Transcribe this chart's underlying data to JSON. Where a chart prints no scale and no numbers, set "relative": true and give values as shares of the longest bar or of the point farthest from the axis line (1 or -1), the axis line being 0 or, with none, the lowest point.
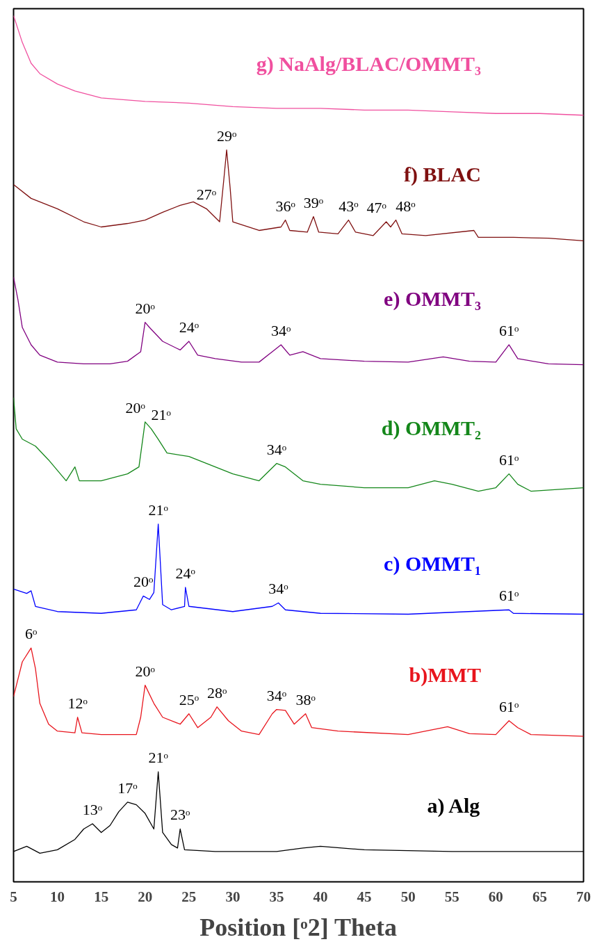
{
  "chart_data": {
    "type": "line",
    "relative": true,
    "xlabel": "Position [ᵒ2] Theta",
    "xlim": [
      5,
      70
    ],
    "xticks": [
      5,
      10,
      15,
      20,
      25,
      30,
      35,
      40,
      45,
      50,
      55,
      60,
      65,
      70
    ],
    "line_style": "solid",
    "series": [
      {
        "name": "g) NaAlg/BLAC/OMMT₃",
        "color": "#f0509f",
        "x": [
          5,
          6,
          7,
          8,
          10,
          12,
          15,
          20,
          25,
          30,
          35,
          40,
          45,
          50,
          55,
          60,
          65,
          70
        ],
        "values": [
          1.0,
          0.969,
          0.945,
          0.933,
          0.921,
          0.913,
          0.905,
          0.901,
          0.899,
          0.895,
          0.893,
          0.893,
          0.891,
          0.891,
          0.889,
          0.887,
          0.887,
          0.885
        ]
      },
      {
        "name": "f) BLAC",
        "color": "#7f1010",
        "x": [
          5,
          7,
          10,
          13,
          15,
          18,
          20,
          22,
          24,
          25.5,
          27,
          28.5,
          29,
          29.3,
          29.7,
          30,
          33,
          35.5,
          36,
          36.5,
          38.5,
          39.2,
          39.8,
          42,
          43.2,
          44,
          46,
          47.5,
          48,
          48.6,
          49.3,
          52,
          57.5,
          58,
          62,
          66,
          70
        ],
        "values": [
          0.805,
          0.789,
          0.777,
          0.762,
          0.756,
          0.76,
          0.764,
          0.773,
          0.781,
          0.785,
          0.777,
          0.762,
          0.813,
          0.845,
          0.801,
          0.762,
          0.752,
          0.756,
          0.764,
          0.752,
          0.75,
          0.768,
          0.75,
          0.748,
          0.764,
          0.75,
          0.746,
          0.762,
          0.756,
          0.764,
          0.748,
          0.746,
          0.752,
          0.744,
          0.744,
          0.743,
          0.74
        ]
      },
      {
        "name": "e) OMMT₃",
        "color": "#800080",
        "x": [
          5,
          5.5,
          6,
          7,
          8,
          10,
          13,
          16,
          18,
          19.5,
          20,
          20.5,
          22,
          24,
          25,
          26,
          28,
          31,
          33,
          34.5,
          35.5,
          36.5,
          38,
          40,
          45,
          50,
          54,
          57,
          60,
          61.5,
          62.5,
          66,
          70
        ],
        "values": [
          0.698,
          0.672,
          0.64,
          0.62,
          0.608,
          0.6,
          0.598,
          0.598,
          0.601,
          0.612,
          0.646,
          0.64,
          0.624,
          0.614,
          0.624,
          0.608,
          0.604,
          0.6,
          0.6,
          0.612,
          0.62,
          0.608,
          0.612,
          0.604,
          0.601,
          0.6,
          0.606,
          0.601,
          0.6,
          0.62,
          0.604,
          0.598,
          0.597
        ]
      },
      {
        "name": "d) OMMT₂",
        "color": "#14871a",
        "x": [
          5,
          5.3,
          6,
          7.5,
          9,
          11,
          12,
          12.5,
          15,
          18,
          19.3,
          20,
          20.7,
          21.5,
          22.5,
          25,
          27,
          30,
          33,
          35,
          36,
          38,
          40,
          45,
          50,
          53,
          55,
          58,
          60,
          61.5,
          62.5,
          64,
          70
        ],
        "values": [
          0.559,
          0.523,
          0.511,
          0.503,
          0.487,
          0.463,
          0.479,
          0.463,
          0.463,
          0.471,
          0.479,
          0.531,
          0.523,
          0.511,
          0.495,
          0.491,
          0.483,
          0.471,
          0.463,
          0.483,
          0.479,
          0.463,
          0.459,
          0.455,
          0.455,
          0.463,
          0.459,
          0.451,
          0.455,
          0.471,
          0.459,
          0.451,
          0.455
        ]
      },
      {
        "name": "c) OMMT₁",
        "color": "#0000ff",
        "x": [
          5,
          6.5,
          7,
          7.5,
          10,
          15,
          19,
          19.8,
          20.5,
          21,
          21.5,
          22,
          23,
          24.5,
          24.6,
          25,
          30,
          34.5,
          35.2,
          36,
          40,
          50,
          61.5,
          62,
          70
        ],
        "values": [
          0.338,
          0.333,
          0.336,
          0.318,
          0.312,
          0.31,
          0.314,
          0.33,
          0.326,
          0.334,
          0.413,
          0.32,
          0.314,
          0.318,
          0.34,
          0.318,
          0.312,
          0.318,
          0.322,
          0.314,
          0.31,
          0.309,
          0.314,
          0.31,
          0.309
        ]
      },
      {
        "name": "b)MMT",
        "color": "#e8141c",
        "x": [
          5,
          6,
          7,
          7.5,
          8,
          9,
          10,
          12,
          12.3,
          12.8,
          15,
          19,
          19.5,
          20,
          21,
          22,
          24,
          25,
          26,
          27.5,
          28.2,
          29.5,
          31,
          33,
          34.5,
          35,
          36,
          37,
          38.3,
          39,
          42,
          50,
          54.5,
          57,
          60,
          61.5,
          62.5,
          64,
          70
        ],
        "values": [
          0.214,
          0.254,
          0.27,
          0.246,
          0.206,
          0.182,
          0.174,
          0.172,
          0.19,
          0.172,
          0.17,
          0.17,
          0.19,
          0.227,
          0.206,
          0.19,
          0.182,
          0.194,
          0.178,
          0.19,
          0.202,
          0.186,
          0.174,
          0.17,
          0.194,
          0.199,
          0.198,
          0.182,
          0.194,
          0.178,
          0.174,
          0.17,
          0.179,
          0.171,
          0.17,
          0.186,
          0.178,
          0.17,
          0.168
        ]
      },
      {
        "name": "a) Alg",
        "color": "#000000",
        "x": [
          5,
          6.5,
          8,
          10,
          12,
          13,
          14,
          15,
          16,
          17,
          18,
          19,
          20,
          21,
          21.5,
          22,
          23,
          23.7,
          24,
          24.5,
          28,
          35,
          38,
          40,
          45,
          55,
          70
        ],
        "values": [
          0.035,
          0.041,
          0.033,
          0.037,
          0.049,
          0.061,
          0.067,
          0.057,
          0.065,
          0.081,
          0.092,
          0.089,
          0.079,
          0.061,
          0.127,
          0.057,
          0.043,
          0.039,
          0.061,
          0.037,
          0.035,
          0.035,
          0.039,
          0.041,
          0.037,
          0.035,
          0.035
        ]
      }
    ],
    "annotations": [
      {
        "text": "27ᵒ",
        "x": 27,
        "y": 0.777
      },
      {
        "text": "29ᵒ",
        "x": 29.3,
        "y": 0.845
      },
      {
        "text": "36ᵒ",
        "x": 36,
        "y": 0.764
      },
      {
        "text": "39ᵒ",
        "x": 39.2,
        "y": 0.768
      },
      {
        "text": "43ᵒ",
        "x": 43.2,
        "y": 0.764
      },
      {
        "text": "47ᵒ",
        "x": 47.5,
        "y": 0.762
      },
      {
        "text": "48ᵒ",
        "x": 48.6,
        "y": 0.764
      },
      {
        "text": "20ᵒ",
        "x": 20,
        "y": 0.646
      },
      {
        "text": "24ᵒ",
        "x": 25,
        "y": 0.624
      },
      {
        "text": "34ᵒ",
        "x": 35.5,
        "y": 0.62
      },
      {
        "text": "61ᵒ",
        "x": 61.5,
        "y": 0.62
      },
      {
        "text": "20ᵒ",
        "x": 20,
        "y": 0.531
      },
      {
        "text": "21ᵒ",
        "x": 20.7,
        "y": 0.523
      },
      {
        "text": "34ᵒ",
        "x": 35,
        "y": 0.483
      },
      {
        "text": "61ᵒ",
        "x": 61.5,
        "y": 0.471
      },
      {
        "text": "21ᵒ",
        "x": 21.5,
        "y": 0.413
      },
      {
        "text": "34ᵒ",
        "x": 35.2,
        "y": 0.322
      },
      {
        "text": "61ᵒ",
        "x": 61.5,
        "y": 0.314
      },
      {
        "text": "20ᵒ",
        "x": 19.8,
        "y": 0.33
      },
      {
        "text": "24ᵒ",
        "x": 24.6,
        "y": 0.34
      },
      {
        "text": "6ᵒ",
        "x": 7,
        "y": 0.27
      },
      {
        "text": "12ᵒ",
        "x": 12.3,
        "y": 0.19
      },
      {
        "text": "20ᵒ",
        "x": 20,
        "y": 0.227
      },
      {
        "text": "25ᵒ",
        "x": 25,
        "y": 0.194
      },
      {
        "text": "28ᵒ",
        "x": 28.2,
        "y": 0.202
      },
      {
        "text": "34ᵒ",
        "x": 35,
        "y": 0.199
      },
      {
        "text": "38ᵒ",
        "x": 38.3,
        "y": 0.194
      },
      {
        "text": "61ᵒ",
        "x": 61.5,
        "y": 0.186
      },
      {
        "text": "17ᵒ",
        "x": 18,
        "y": 0.092
      },
      {
        "text": "21ᵒ",
        "x": 21.5,
        "y": 0.127
      },
      {
        "text": "13ᵒ",
        "x": 14,
        "y": 0.067
      },
      {
        "text": "23ᵒ",
        "x": 24,
        "y": 0.061
      }
    ]
  }
}
